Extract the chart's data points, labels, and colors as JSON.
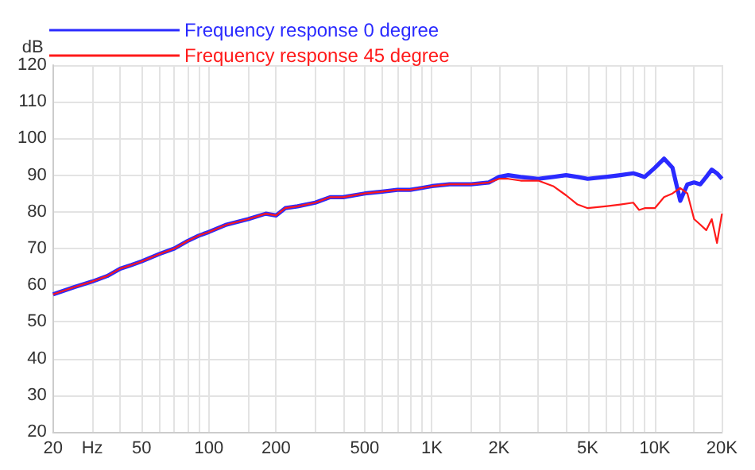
{
  "chart_data": {
    "type": "line",
    "ylabel": "dB",
    "log": "x",
    "grid": true,
    "legend": "top left",
    "marker": "none",
    "line_style": "solid",
    "x": [
      20,
      25,
      30,
      35,
      40,
      45,
      50,
      60,
      70,
      80,
      90,
      100,
      120,
      150,
      180,
      200,
      220,
      250,
      300,
      350,
      400,
      500,
      600,
      700,
      800,
      900,
      1000,
      1200,
      1500,
      1800,
      2000,
      2200,
      2500,
      3000,
      3500,
      4000,
      4500,
      5000,
      6000,
      7000,
      8000,
      8500,
      9000,
      10000,
      11000,
      12000,
      13000,
      14000,
      15000,
      16000,
      17000,
      18000,
      19000,
      20000
    ],
    "series": [
      {
        "name": "Frequency response 0 degree",
        "color": "#2a2aff",
        "values": [
          57.5,
          59.5,
          61,
          62.5,
          64.5,
          65.5,
          66.5,
          68.5,
          70,
          72,
          73.5,
          74.5,
          76.5,
          78,
          79.5,
          79,
          81,
          81.5,
          82.5,
          84,
          84,
          85,
          85.5,
          86,
          86,
          86.5,
          87,
          87.5,
          87.5,
          88,
          89.5,
          90,
          89.5,
          89,
          89.5,
          90,
          89.5,
          89,
          89.5,
          90,
          90.5,
          90,
          89.5,
          92,
          94.5,
          92,
          83,
          87.5,
          88,
          87.5,
          89.5,
          91.5,
          90.5,
          89
        ]
      },
      {
        "name": "Frequency response 45 degree",
        "color": "#ff1a1a",
        "values": [
          57.5,
          59.5,
          61,
          62.5,
          64.5,
          65.5,
          66.5,
          68.5,
          70,
          72,
          73.5,
          74.5,
          76.5,
          78,
          79.5,
          79,
          81,
          81.5,
          82.5,
          84,
          84,
          85,
          85.5,
          86,
          86,
          86.5,
          87,
          87.5,
          87.5,
          88,
          89,
          89,
          88.5,
          88.5,
          87,
          84.5,
          82,
          81,
          81.5,
          82,
          82.5,
          80.5,
          81,
          81,
          84,
          85,
          86.5,
          85,
          78,
          76.5,
          75,
          78,
          71.5,
          79.5
        ]
      }
    ],
    "xlim": [
      20,
      20000
    ],
    "xticks": [
      20,
      {
        "value": 30,
        "label": "Hz"
      },
      {
        "value": 40,
        "label": null
      },
      50,
      {
        "value": 60,
        "label": null
      },
      {
        "value": 70,
        "label": null
      },
      {
        "value": 80,
        "label": null
      },
      {
        "value": 90,
        "label": null
      },
      100,
      {
        "value": 150,
        "label": null
      },
      200,
      {
        "value": 300,
        "label": null
      },
      {
        "value": 400,
        "label": null
      },
      500,
      {
        "value": 600,
        "label": null
      },
      {
        "value": 700,
        "label": null
      },
      {
        "value": 800,
        "label": null
      },
      {
        "value": 900,
        "label": null
      },
      {
        "value": 1000,
        "label": "1K"
      },
      {
        "value": 1500,
        "label": null
      },
      {
        "value": 2000,
        "label": "2K"
      },
      {
        "value": 3000,
        "label": null
      },
      {
        "value": 4000,
        "label": null
      },
      {
        "value": 5000,
        "label": "5K"
      },
      {
        "value": 6000,
        "label": null
      },
      {
        "value": 7000,
        "label": null
      },
      {
        "value": 8000,
        "label": null
      },
      {
        "value": 9000,
        "label": null
      },
      {
        "value": 10000,
        "label": "10K"
      },
      {
        "value": 15000,
        "label": null
      },
      {
        "value": 20000,
        "label": "20K"
      }
    ],
    "ylim": [
      20,
      120
    ],
    "yticks": [
      20,
      30,
      40,
      50,
      60,
      70,
      80,
      90,
      100,
      110,
      120
    ]
  }
}
